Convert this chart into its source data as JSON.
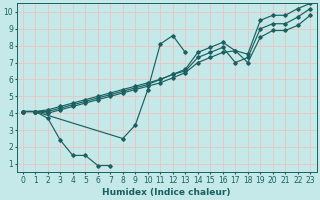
{
  "xlabel": "Humidex (Indice chaleur)",
  "xlim": [
    -0.5,
    23.5
  ],
  "ylim": [
    0.5,
    10.5
  ],
  "xticks": [
    0,
    1,
    2,
    3,
    4,
    5,
    6,
    7,
    8,
    9,
    10,
    11,
    12,
    13,
    14,
    15,
    16,
    17,
    18,
    19,
    20,
    21,
    22,
    23
  ],
  "yticks": [
    1,
    2,
    3,
    4,
    5,
    6,
    7,
    8,
    9,
    10
  ],
  "bg_color": "#c5e8e8",
  "line_color": "#1a6060",
  "grid_color": "#e8c8c8",
  "series": [
    {
      "x": [
        0,
        1,
        2,
        3,
        4,
        5,
        6,
        7
      ],
      "y": [
        4.1,
        4.1,
        3.7,
        2.4,
        1.5,
        1.5,
        0.9,
        0.9
      ]
    },
    {
      "x": [
        0,
        1,
        8,
        9,
        10,
        11,
        12,
        13
      ],
      "y": [
        4.1,
        4.1,
        2.5,
        3.3,
        5.4,
        8.1,
        8.6,
        7.6
      ]
    },
    {
      "x": [
        0,
        1,
        2,
        3,
        4,
        5,
        6,
        7,
        8,
        9,
        10,
        11,
        12,
        13,
        14,
        15,
        16,
        17,
        18,
        19,
        20,
        21,
        22,
        23
      ],
      "y": [
        4.1,
        4.1,
        4.2,
        4.4,
        4.6,
        4.8,
        5.0,
        5.2,
        5.4,
        5.6,
        5.8,
        6.0,
        6.3,
        6.6,
        7.6,
        7.9,
        8.2,
        7.7,
        7.5,
        9.5,
        9.8,
        9.8,
        10.2,
        10.5
      ]
    },
    {
      "x": [
        0,
        1,
        2,
        3,
        4,
        5,
        6,
        7,
        8,
        9,
        10,
        11,
        12,
        13,
        14,
        15,
        16,
        17,
        18,
        19,
        20,
        21,
        22,
        23
      ],
      "y": [
        4.1,
        4.1,
        4.1,
        4.3,
        4.5,
        4.7,
        4.9,
        5.1,
        5.3,
        5.5,
        5.7,
        6.0,
        6.3,
        6.5,
        7.3,
        7.6,
        7.9,
        7.0,
        7.3,
        9.0,
        9.3,
        9.3,
        9.7,
        10.2
      ]
    },
    {
      "x": [
        0,
        1,
        2,
        3,
        4,
        5,
        6,
        7,
        8,
        9,
        10,
        11,
        12,
        13,
        14,
        15,
        16,
        17,
        18,
        19,
        20,
        21,
        22,
        23
      ],
      "y": [
        4.1,
        4.1,
        4.0,
        4.2,
        4.4,
        4.6,
        4.8,
        5.0,
        5.2,
        5.4,
        5.6,
        5.8,
        6.1,
        6.4,
        7.0,
        7.3,
        7.6,
        7.7,
        7.0,
        8.5,
        8.9,
        8.9,
        9.2,
        9.8
      ]
    }
  ]
}
